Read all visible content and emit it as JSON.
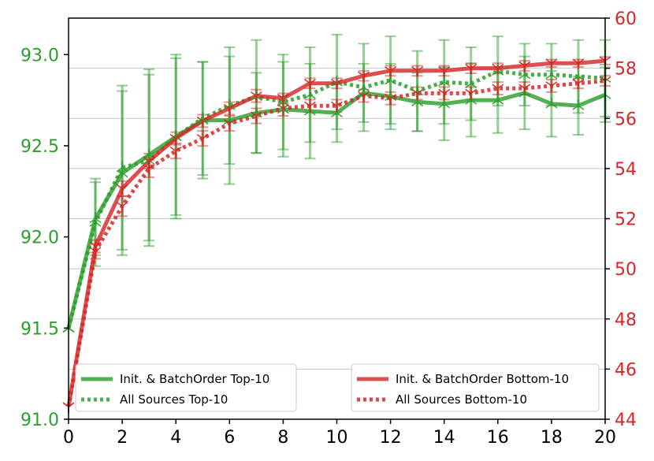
{
  "colors": {
    "green": "#2ca02c",
    "red": "#d62728",
    "grid": "#c8c8c8",
    "axis": "#000000"
  },
  "chart_data": {
    "type": "line",
    "x": [
      0,
      1,
      2,
      3,
      4,
      5,
      6,
      7,
      8,
      9,
      10,
      11,
      12,
      13,
      14,
      15,
      16,
      17,
      18,
      19,
      20
    ],
    "xlim": [
      0,
      20
    ],
    "xticks": [
      "0",
      "2",
      "4",
      "6",
      "8",
      "10",
      "12",
      "14",
      "16",
      "18",
      "20"
    ],
    "xtick_values": [
      0,
      2,
      4,
      6,
      8,
      10,
      12,
      14,
      16,
      18,
      20
    ],
    "y_left": {
      "ylim": [
        91.0,
        93.2
      ],
      "ticks": [
        "91.0",
        "91.5",
        "92.0",
        "92.5",
        "93.0"
      ],
      "tick_values": [
        91.0,
        91.5,
        92.0,
        92.5,
        93.0
      ]
    },
    "y_right": {
      "ylim": [
        44,
        60
      ],
      "ticks": [
        "44",
        "46",
        "48",
        "50",
        "52",
        "54",
        "56",
        "58",
        "60"
      ],
      "tick_values": [
        44,
        46,
        48,
        50,
        52,
        54,
        56,
        58,
        60
      ]
    },
    "grid": "horizontal",
    "legend_left": "bottom-left",
    "legend_right": "bottom-right",
    "series": [
      {
        "name": "Init. & BatchOrder Top-10",
        "axis": "left",
        "color": "green",
        "style": "solid",
        "values": [
          91.5,
          92.1,
          92.35,
          92.45,
          92.55,
          92.64,
          92.64,
          92.68,
          92.7,
          92.69,
          92.68,
          92.79,
          92.77,
          92.74,
          92.73,
          92.75,
          92.75,
          92.79,
          92.73,
          92.72,
          92.78
        ],
        "err": [
          0,
          0.2,
          0.45,
          0.47,
          0.43,
          0.32,
          0.35,
          0.22,
          0.26,
          0.26,
          0.16,
          0.16,
          0.18,
          0.16,
          0.2,
          0.2,
          0.18,
          0.2,
          0.18,
          0.16,
          0.15
        ]
      },
      {
        "name": "All Sources Top-10",
        "axis": "left",
        "color": "green",
        "style": "dotted",
        "values": [
          91.5,
          92.08,
          92.38,
          92.42,
          92.55,
          92.65,
          92.72,
          92.77,
          92.74,
          92.78,
          92.85,
          92.82,
          92.86,
          92.8,
          92.85,
          92.84,
          92.91,
          92.89,
          92.89,
          92.88,
          92.87
        ],
        "err": [
          0,
          0.24,
          0.45,
          0.47,
          0.45,
          0.31,
          0.32,
          0.31,
          0.26,
          0.26,
          0.26,
          0.24,
          0.24,
          0.22,
          0.23,
          0.2,
          0.19,
          0.17,
          0.17,
          0.2,
          0.21
        ]
      },
      {
        "name": "Init. & BatchOrder Bottom-10",
        "axis": "right",
        "color": "red",
        "style": "solid",
        "values": [
          44.5,
          50.9,
          53.2,
          54.3,
          55.2,
          55.9,
          56.4,
          56.9,
          56.8,
          57.4,
          57.4,
          57.7,
          57.9,
          57.9,
          57.9,
          58.0,
          58.0,
          58.1,
          58.2,
          58.2,
          58.3
        ],
        "err": [
          0,
          0.25,
          0.3,
          0.3,
          0.25,
          0.25,
          0.25,
          0.25,
          0.2,
          0.2,
          0.2,
          0.2,
          0.2,
          0.2,
          0.2,
          0.2,
          0.2,
          0.2,
          0.15,
          0.15,
          0.15
        ]
      },
      {
        "name": "All Sources Bottom-10",
        "axis": "right",
        "color": "red",
        "style": "dotted",
        "values": [
          44.5,
          50.7,
          52.5,
          54.0,
          54.7,
          55.2,
          55.8,
          56.1,
          56.4,
          56.5,
          56.5,
          56.9,
          56.8,
          57.0,
          57.0,
          57.0,
          57.2,
          57.2,
          57.3,
          57.4,
          57.5
        ],
        "err": [
          0,
          0.3,
          0.4,
          0.35,
          0.3,
          0.3,
          0.3,
          0.3,
          0.3,
          0.25,
          0.25,
          0.25,
          0.25,
          0.25,
          0.25,
          0.25,
          0.25,
          0.25,
          0.25,
          0.2,
          0.2
        ]
      }
    ]
  }
}
